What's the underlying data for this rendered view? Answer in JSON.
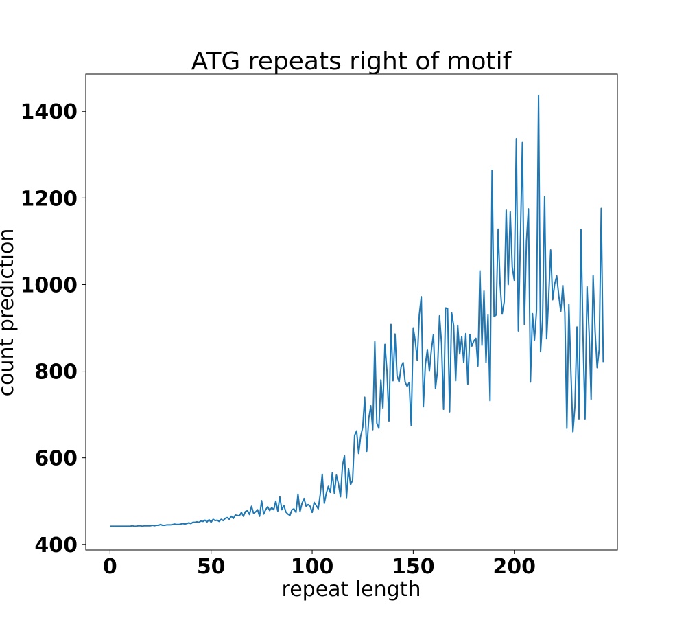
{
  "chart_data": {
    "type": "line",
    "title": "ATG repeats right of motif",
    "xlabel": "repeat length",
    "ylabel": "count prediction",
    "xlim": [
      -12,
      251
    ],
    "ylim": [
      387,
      1486
    ],
    "xticks": [
      0,
      50,
      100,
      150,
      200
    ],
    "xtick_labels": [
      "0",
      "50",
      "100",
      "150",
      "200"
    ],
    "yticks": [
      400,
      600,
      800,
      1000,
      1200,
      1400
    ],
    "ytick_labels": [
      "400",
      "600",
      "800",
      "1000",
      "1200",
      "1400"
    ],
    "grid": false,
    "line_color": "#1f77b4",
    "series": [
      {
        "values": [
          442,
          442,
          442,
          442,
          442,
          442,
          442,
          442,
          442,
          442,
          442,
          443,
          442,
          442,
          443,
          443,
          442,
          443,
          443,
          443,
          443,
          444,
          443,
          444,
          444,
          446,
          444,
          444,
          445,
          445,
          445,
          446,
          447,
          446,
          446,
          447,
          448,
          447,
          448,
          450,
          448,
          451,
          451,
          452,
          451,
          454,
          453,
          456,
          452,
          457,
          451,
          458,
          455,
          456,
          453,
          458,
          455,
          460,
          462,
          458,
          465,
          460,
          468,
          467,
          466,
          474,
          465,
          476,
          478,
          469,
          488,
          472,
          475,
          480,
          465,
          501,
          470,
          480,
          487,
          478,
          485,
          480,
          500,
          477,
          510,
          480,
          490,
          475,
          470,
          467,
          480,
          482,
          474,
          516,
          476,
          495,
          506,
          488,
          492,
          488,
          474,
          497,
          490,
          482,
          515,
          562,
          495,
          518,
          534,
          520,
          566,
          518,
          560,
          540,
          510,
          582,
          605,
          508,
          575,
          538,
          548,
          652,
          662,
          610,
          650,
          670,
          740,
          615,
          690,
          720,
          665,
          868,
          680,
          668,
          780,
          715,
          862,
          800,
          685,
          908,
          778,
          886,
          790,
          775,
          810,
          820,
          775,
          765,
          774,
          674,
          900,
          870,
          825,
          930,
          972,
          718,
          815,
          850,
          800,
          850,
          885,
          760,
          800,
          928,
          865,
          712,
          946,
          945,
          706,
          935,
          905,
          778,
          906,
          840,
          880,
          820,
          887,
          770,
          885,
          858,
          870,
          876,
          812,
          1032,
          860,
          985,
          820,
          930,
          732,
          1264,
          926,
          930,
          1128,
          1000,
          932,
          960,
          1172,
          1000,
          1168,
          1040,
          1010,
          1337,
          893,
          1103,
          1328,
          908,
          1100,
          1175,
          775,
          933,
          872,
          940,
          1437,
          845,
          920,
          1203,
          875,
          970,
          1080,
          965,
          1002,
          1020,
          975,
          938,
          998,
          935,
          668,
          955,
          800,
          660,
          720,
          902,
          690,
          1127,
          880,
          690,
          995,
          890,
          735,
          1021,
          890,
          808,
          850,
          1176,
          821
        ]
      }
    ]
  }
}
